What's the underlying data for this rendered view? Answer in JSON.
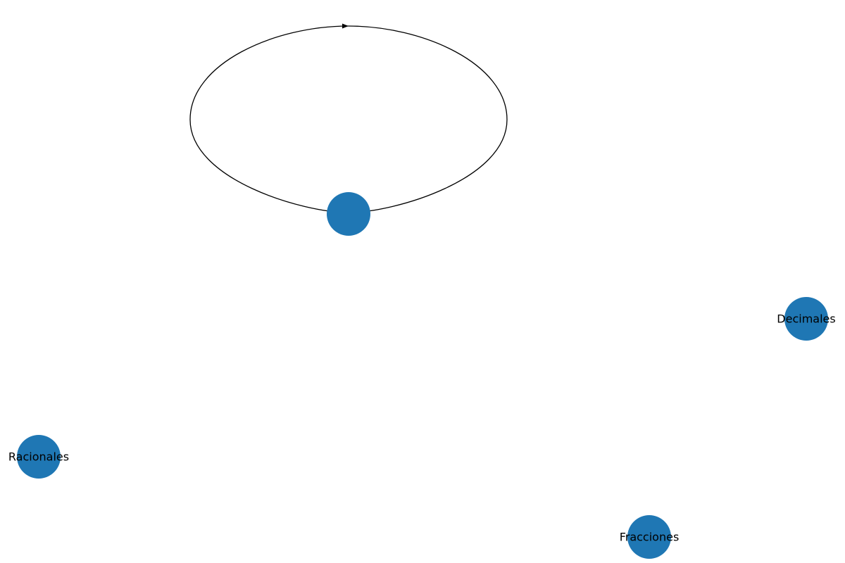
{
  "diagram": {
    "type": "directed-graph",
    "node_color": "#1f77b4",
    "edge_color": "#000000",
    "nodes": [
      {
        "id": "n0",
        "label": ""
      },
      {
        "id": "n1",
        "label": "Decimales"
      },
      {
        "id": "n2",
        "label": "Racionales"
      },
      {
        "id": "n3",
        "label": "Fracciones"
      }
    ],
    "edges": [
      {
        "from": "n0",
        "to": "n0",
        "kind": "self-loop",
        "directed": true
      }
    ]
  }
}
